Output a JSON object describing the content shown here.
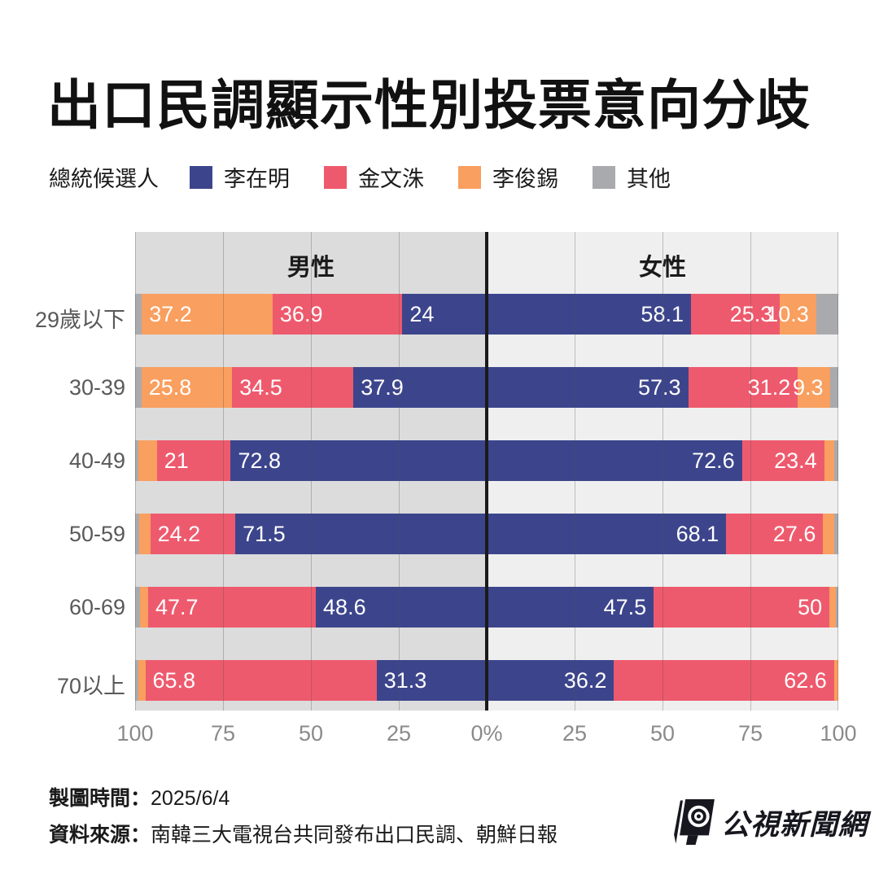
{
  "title": "出口民調顯示性別投票意向分歧",
  "legend": {
    "prefix": "總統候選人",
    "items": [
      {
        "label": "李在明",
        "color": "#3c458c"
      },
      {
        "label": "金文洙",
        "color": "#ee5a6d"
      },
      {
        "label": "李俊錫",
        "color": "#f99f5f"
      },
      {
        "label": "其他",
        "color": "#a9aaad"
      }
    ]
  },
  "panels": {
    "left": "男性",
    "right": "女性"
  },
  "chart_data": {
    "type": "bar",
    "variant": "diverging-stacked-horizontal",
    "title": "出口民調顯示性別投票意向分歧",
    "unit": "%",
    "xlim": [
      -100,
      100
    ],
    "grid": true,
    "axis_ticks": [
      "100",
      "75",
      "50",
      "25",
      "0%",
      "25",
      "50",
      "75",
      "100"
    ],
    "categories": [
      "29歲以下",
      "30-39",
      "40-49",
      "50-59",
      "60-69",
      "70以上"
    ],
    "series_names": [
      "李在明",
      "金文洙",
      "李俊錫",
      "其他"
    ],
    "male": {
      "panel_label": "男性",
      "series": [
        {
          "name": "李在明",
          "values": [
            24,
            37.9,
            72.8,
            71.5,
            48.6,
            31.3
          ]
        },
        {
          "name": "金文洙",
          "values": [
            36.9,
            34.5,
            21,
            24.2,
            47.7,
            65.8
          ]
        },
        {
          "name": "李俊錫",
          "values": [
            37.2,
            25.8,
            5.3,
            3.1,
            2.3,
            1.9
          ]
        },
        {
          "name": "其他",
          "values": [
            1.9,
            1.8,
            0.9,
            1.2,
            1.4,
            1.0
          ]
        }
      ]
    },
    "female": {
      "panel_label": "女性",
      "series": [
        {
          "name": "李在明",
          "values": [
            58.1,
            57.3,
            72.6,
            68.1,
            47.5,
            36.2
          ]
        },
        {
          "name": "金文洙",
          "values": [
            25.3,
            31.2,
            23.4,
            27.6,
            50,
            62.6
          ]
        },
        {
          "name": "李俊錫",
          "values": [
            10.3,
            9.3,
            2.8,
            3.1,
            1.8,
            1.2
          ]
        },
        {
          "name": "其他",
          "values": [
            6.3,
            2.2,
            1.2,
            1.2,
            0.7,
            0
          ]
        }
      ]
    },
    "label_color": "#ffffff",
    "background_male": "#dcdcdc",
    "background_female": "#efefef"
  },
  "footer": {
    "made_label": "製圖時間：",
    "made_value": "2025/6/4",
    "source_label": "資料來源：",
    "source_value": "南韓三大電視台共同發布出口民調、朝鮮日報"
  },
  "logo": {
    "text": "公視新聞網"
  }
}
